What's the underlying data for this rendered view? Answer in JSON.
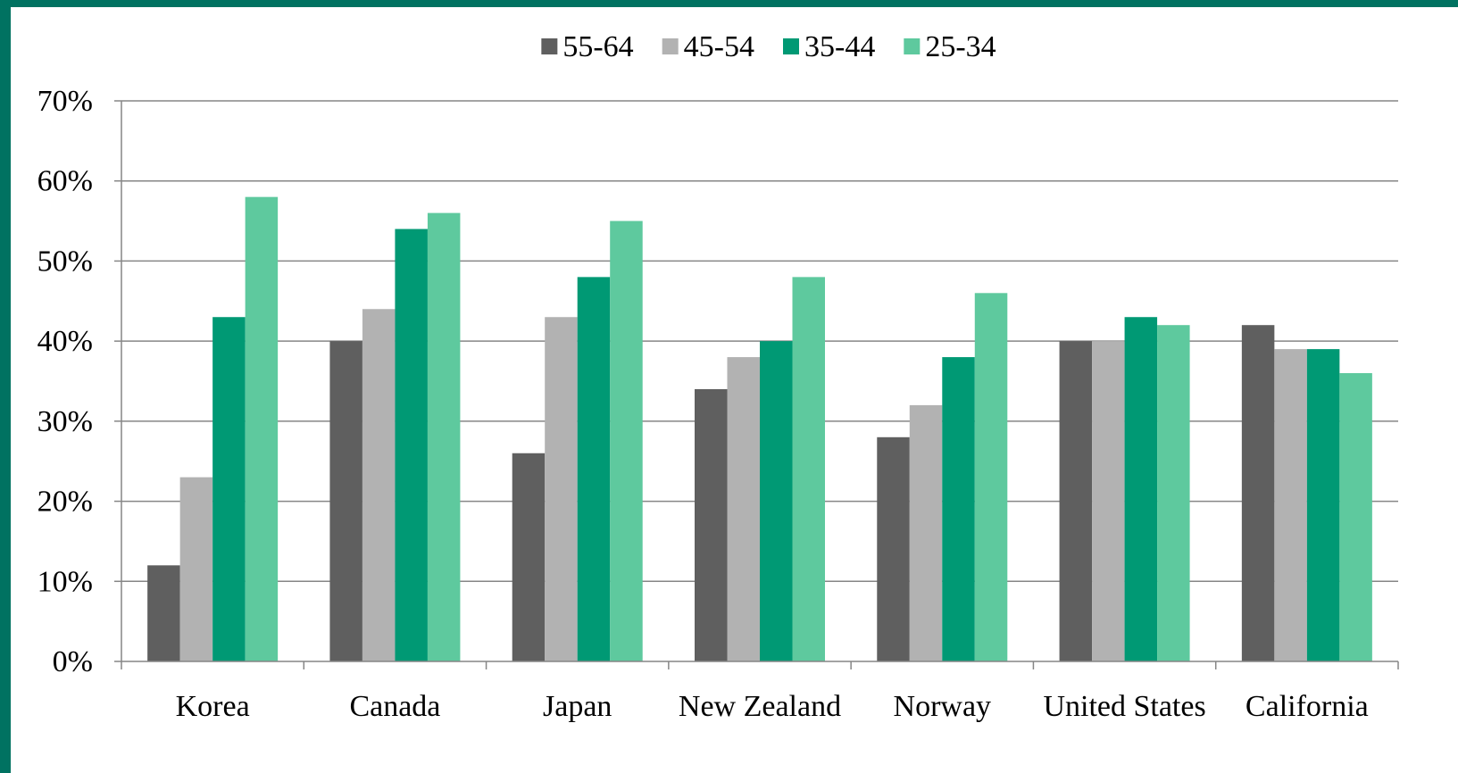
{
  "colors": {
    "frame": "#007261",
    "background": "#ffffff",
    "gridline": "#868686",
    "axis": "#868686"
  },
  "chart_data": {
    "type": "bar",
    "title": "",
    "xlabel": "",
    "ylabel": "",
    "ylim": [
      0,
      0.7
    ],
    "y_ticks": [
      0,
      0.1,
      0.2,
      0.3,
      0.4,
      0.5,
      0.6,
      0.7
    ],
    "y_tick_labels": [
      "0%",
      "10%",
      "20%",
      "30%",
      "40%",
      "50%",
      "60%",
      "70%"
    ],
    "grid": true,
    "legend_position": "top",
    "categories": [
      "Korea",
      "Canada",
      "Japan",
      "New Zealand",
      "Norway",
      "United States",
      "California"
    ],
    "series": [
      {
        "name": "55-64",
        "color": "#5f5f5f",
        "values": [
          0.12,
          0.4,
          0.26,
          0.34,
          0.28,
          0.4,
          0.42
        ]
      },
      {
        "name": "45-54",
        "color": "#b2b2b2",
        "values": [
          0.23,
          0.44,
          0.43,
          0.38,
          0.32,
          0.4,
          0.39
        ]
      },
      {
        "name": "35-44",
        "color": "#009974",
        "values": [
          0.43,
          0.54,
          0.48,
          0.4,
          0.38,
          0.43,
          0.39
        ]
      },
      {
        "name": "25-34",
        "color": "#5ec99e",
        "values": [
          0.58,
          0.56,
          0.55,
          0.48,
          0.46,
          0.42,
          0.36
        ]
      }
    ]
  }
}
